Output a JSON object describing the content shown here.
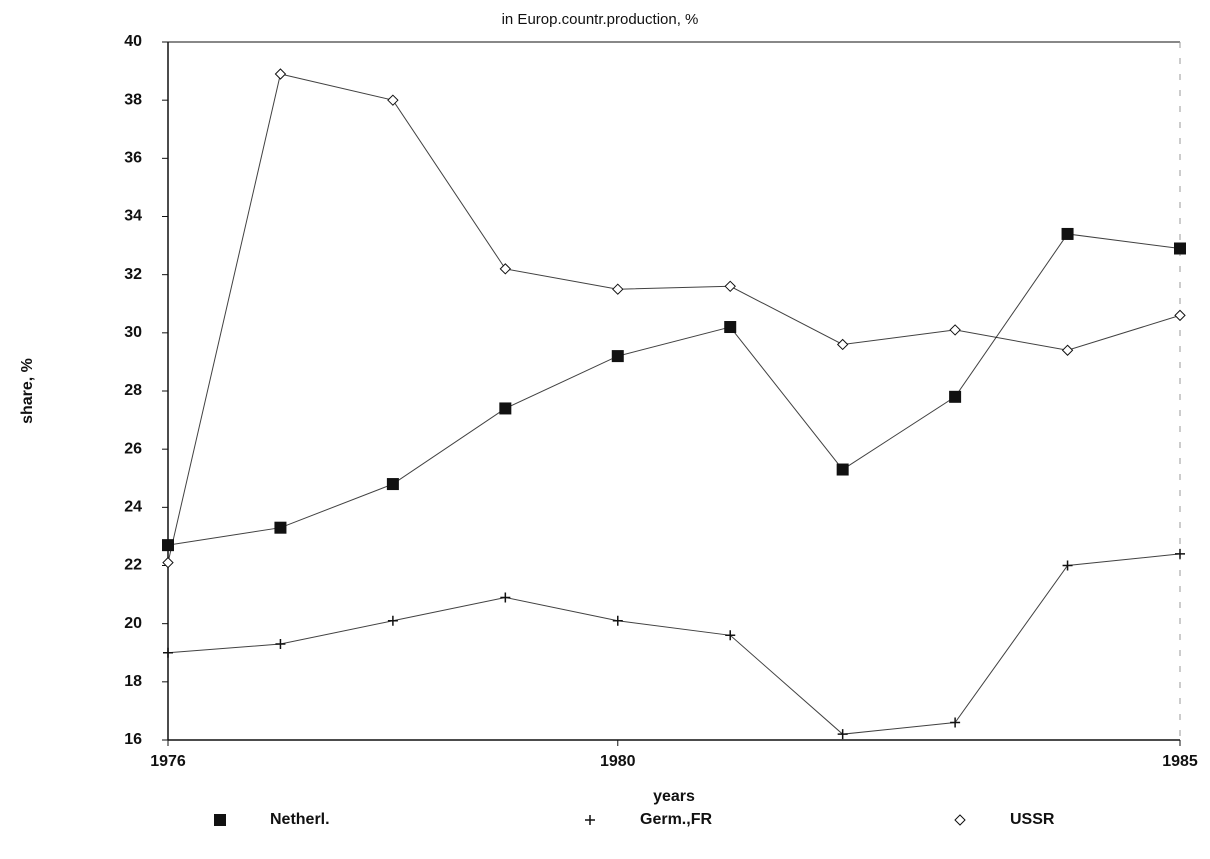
{
  "chart_data": {
    "type": "line",
    "title": "in Europ.countr.production, %",
    "x_label": "years",
    "y_label": "share, %",
    "x": [
      1976,
      1977,
      1978,
      1979,
      1980,
      1981,
      1982,
      1983,
      1984,
      1985
    ],
    "series": [
      {
        "name": "Netherl.",
        "color": "#111111",
        "marker": "square",
        "values": [
          22.7,
          23.3,
          24.8,
          27.4,
          29.2,
          30.2,
          25.3,
          27.8,
          33.4,
          32.9
        ]
      },
      {
        "name": "Germ.,FR",
        "color": "#111111",
        "marker": "plus",
        "values": [
          19.0,
          19.3,
          20.1,
          20.9,
          20.1,
          19.6,
          16.2,
          16.6,
          22.0,
          22.4
        ]
      },
      {
        "name": "USSR",
        "color": "#111111",
        "marker": "diamond",
        "values": [
          22.1,
          38.9,
          38.0,
          32.2,
          31.5,
          31.6,
          29.6,
          30.1,
          29.4,
          30.6
        ]
      }
    ],
    "xlim": [
      1976,
      1985
    ],
    "xticks": [
      1976,
      1980,
      1985
    ],
    "ylim": [
      16,
      40
    ],
    "yticks": [
      16,
      18,
      20,
      22,
      24,
      26,
      28,
      30,
      32,
      34,
      36,
      38,
      40
    ],
    "legend": "bottom"
  }
}
